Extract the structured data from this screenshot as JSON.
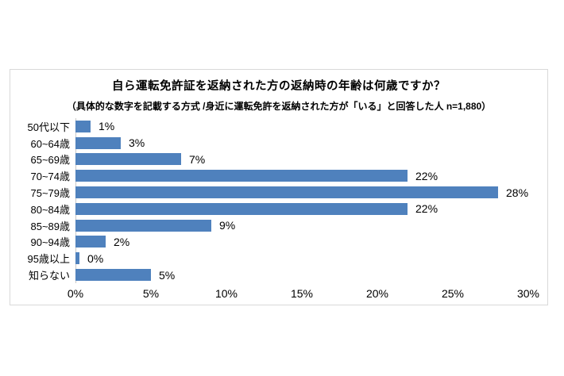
{
  "page": {
    "background_color": "#ffffff"
  },
  "chart": {
    "title": "自ら運転免許証を返納された方の返納時の年齢は何歳ですか？",
    "subtitle": "（具体的な数字を記載する方式 /身近に運転免許を返納された方が「いる」と回答した人 n=1,880）",
    "bar_color": "#4f81bd",
    "frame_border_color": "#d9d9d9",
    "axis_line_color": "#c9c9c9",
    "text_color": "#000000"
  },
  "chart_data": {
    "type": "bar",
    "orientation": "horizontal",
    "title": "自ら運転免許証を返納された方の返納時の年齢は何歳ですか？",
    "subtitle": "（具体的な数字を記載する方式 /身近に運転免許を返納された方が「いる」と回答した人 n=1,880）",
    "categories": [
      "50代以下",
      "60~64歳",
      "65~69歳",
      "70~74歳",
      "75~79歳",
      "80~84歳",
      "85~89歳",
      "90~94歳",
      "95歳以上",
      "知らない"
    ],
    "values": [
      1,
      3,
      7,
      22,
      28,
      22,
      9,
      2,
      0,
      5
    ],
    "value_labels": [
      "1%",
      "3%",
      "7%",
      "22%",
      "28%",
      "22%",
      "9%",
      "2%",
      "0%",
      "5%"
    ],
    "xlabel": "",
    "ylabel": "",
    "xlim": [
      0,
      30
    ],
    "x_tick_values": [
      0,
      5,
      10,
      15,
      20,
      25,
      30
    ],
    "x_tick_labels": [
      "0%",
      "5%",
      "10%",
      "15%",
      "20%",
      "25%",
      "30%"
    ],
    "grid": false,
    "legend": "none",
    "data_labels": "outside-end",
    "sample_size": "n=1,880"
  }
}
